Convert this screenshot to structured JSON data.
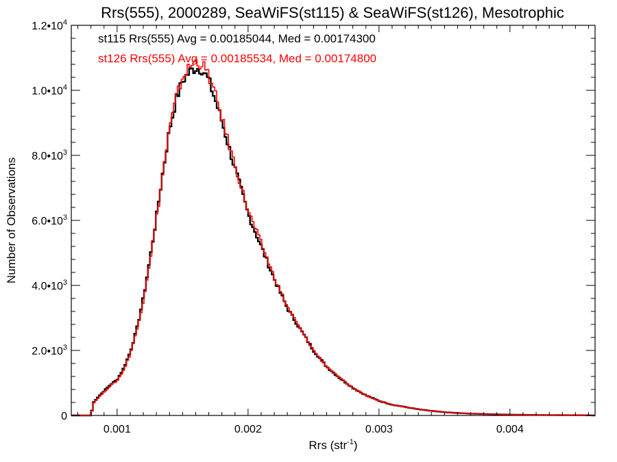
{
  "chart_data": {
    "type": "line",
    "title": "Rrs(555), 2000289, SeaWiFS(st115) & SeaWiFS(st126), Mesotrophic",
    "xlabel": "Rrs (str",
    "xlabel_sup": "-1",
    "xlabel_suffix": ")",
    "ylabel": "Number of Observations",
    "xlim": [
      0.00065,
      0.00465
    ],
    "ylim": [
      0,
      12000
    ],
    "grid": false,
    "x_ticks": [
      {
        "value": 0.001,
        "label": "0.001"
      },
      {
        "value": 0.002,
        "label": "0.002"
      },
      {
        "value": 0.003,
        "label": "0.003"
      },
      {
        "value": 0.004,
        "label": "0.004"
      }
    ],
    "y_ticks": [
      {
        "value": 0,
        "label": "0",
        "sup": ""
      },
      {
        "value": 2000,
        "label": "2.0•10",
        "sup": "3"
      },
      {
        "value": 4000,
        "label": "4.0•10",
        "sup": "3"
      },
      {
        "value": 6000,
        "label": "6.0•10",
        "sup": "3"
      },
      {
        "value": 8000,
        "label": "8.0•10",
        "sup": "3"
      },
      {
        "value": 10000,
        "label": "1.0•10",
        "sup": "4"
      },
      {
        "value": 12000,
        "label": "1.2•10",
        "sup": "4"
      }
    ],
    "annotations": [
      {
        "text": "st115 Rrs(555) Avg = 0.00185044, Med = 0.00174300",
        "color": "#000000"
      },
      {
        "text": "st126 Rrs(555) Avg = 0.00185534, Med = 0.00174800",
        "color": "#ff0000"
      }
    ],
    "series": [
      {
        "color": "#000000",
        "x": [
          0.00065,
          0.0008,
          0.00082,
          0.00085,
          0.0009,
          0.00095,
          0.001,
          0.00105,
          0.0011,
          0.00115,
          0.0012,
          0.00125,
          0.0013,
          0.00135,
          0.0014,
          0.00145,
          0.0015,
          0.00155,
          0.0016,
          0.00165,
          0.0017,
          0.00175,
          0.0018,
          0.00185,
          0.0019,
          0.00195,
          0.002,
          0.0021,
          0.0022,
          0.0023,
          0.0024,
          0.0025,
          0.0026,
          0.0027,
          0.0028,
          0.0029,
          0.003,
          0.0031,
          0.0032,
          0.0033,
          0.0034,
          0.0035,
          0.0036,
          0.0037,
          0.0038,
          0.0039,
          0.004,
          0.0041,
          0.0042,
          0.0043,
          0.0044,
          0.0045,
          0.0046,
          0.00465
        ],
        "y": [
          0,
          0,
          400,
          550,
          750,
          950,
          1100,
          1450,
          1950,
          2650,
          3600,
          4800,
          6100,
          7500,
          8800,
          9700,
          10300,
          10550,
          10700,
          10650,
          10300,
          9700,
          9050,
          8300,
          7600,
          6900,
          6200,
          5200,
          4200,
          3300,
          2650,
          2000,
          1500,
          1150,
          850,
          620,
          450,
          330,
          260,
          190,
          140,
          100,
          75,
          55,
          45,
          35,
          25,
          20,
          15,
          12,
          10,
          8,
          5,
          0
        ]
      },
      {
        "color": "#ff0000",
        "x": [
          0.00065,
          0.0008,
          0.00082,
          0.00085,
          0.0009,
          0.00095,
          0.001,
          0.00105,
          0.0011,
          0.00115,
          0.0012,
          0.00125,
          0.0013,
          0.00135,
          0.0014,
          0.00145,
          0.0015,
          0.00155,
          0.0016,
          0.00165,
          0.0017,
          0.00175,
          0.0018,
          0.00185,
          0.0019,
          0.00195,
          0.002,
          0.0021,
          0.0022,
          0.0023,
          0.0024,
          0.0025,
          0.0026,
          0.0027,
          0.0028,
          0.0029,
          0.003,
          0.0031,
          0.0032,
          0.0033,
          0.0034,
          0.0035,
          0.0036,
          0.0037,
          0.0038,
          0.0039,
          0.004,
          0.0041,
          0.0042,
          0.0043,
          0.0044,
          0.0045,
          0.0046,
          0.00465
        ],
        "y": [
          0,
          0,
          380,
          520,
          720,
          920,
          1070,
          1400,
          1900,
          2600,
          3550,
          4750,
          6050,
          7450,
          8800,
          9750,
          10400,
          10700,
          10900,
          10800,
          10450,
          9850,
          9150,
          8400,
          7700,
          7000,
          6300,
          5300,
          4250,
          3350,
          2650,
          2000,
          1500,
          1150,
          850,
          620,
          450,
          330,
          260,
          190,
          140,
          100,
          75,
          55,
          45,
          35,
          25,
          20,
          15,
          12,
          10,
          8,
          5,
          0
        ]
      }
    ]
  }
}
